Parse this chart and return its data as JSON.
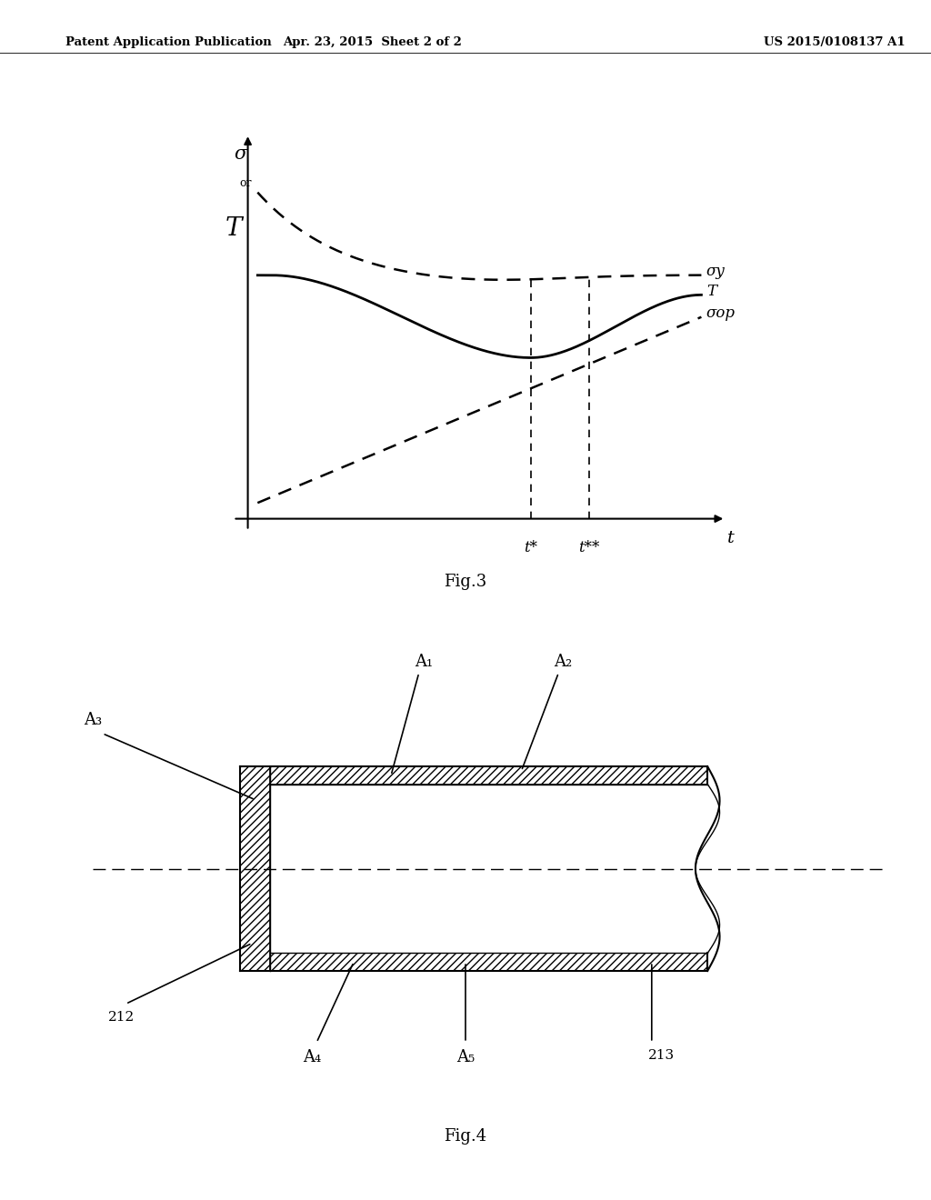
{
  "background_color": "#ffffff",
  "header_left": "Patent Application Publication",
  "header_center": "Apr. 23, 2015  Sheet 2 of 2",
  "header_right": "US 2015/0108137 A1",
  "fig3_title": "Fig.3",
  "fig4_title": "Fig.4",
  "fig3": {
    "ylabel_sigma": "σ",
    "ylabel_or": "or",
    "ylabel_T": "T",
    "xlabel_t": "t",
    "label_sigma_y": "σy",
    "label_T": "T",
    "label_sigma_op": "σop",
    "label_t_star": "t*",
    "label_t_dstar": "t**"
  },
  "fig4": {
    "label_A1": "A₁",
    "label_A2": "A₂",
    "label_A3": "A₃",
    "label_A4": "A₄",
    "label_A5": "A₅",
    "label_212": "212",
    "label_213": "213"
  }
}
